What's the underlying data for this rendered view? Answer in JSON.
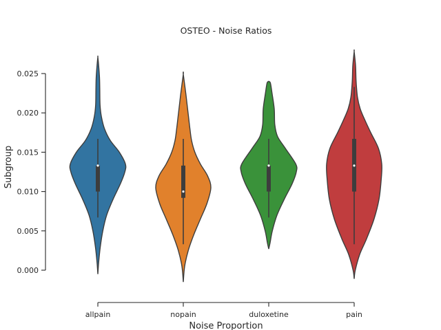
{
  "chart_data": {
    "type": "violin",
    "title": "OSTEO - Noise Ratios",
    "xlabel": "Noise Proportion",
    "ylabel": "Subgroup",
    "ylim": [
      -0.0016,
      0.0282
    ],
    "yticks": [
      0.0,
      0.005,
      0.01,
      0.015,
      0.02,
      0.025
    ],
    "ytick_labels": [
      "0.000",
      "0.005",
      "0.010",
      "0.015",
      "0.020",
      "0.025"
    ],
    "categories": [
      "allpain",
      "nopain",
      "duloxetine",
      "pain"
    ],
    "series": [
      {
        "name": "allpain",
        "color": "#3274a1",
        "range": [
          -0.0005,
          0.0271
        ],
        "whisker": [
          0.0067,
          0.0167
        ],
        "q1": 0.01,
        "median": 0.0133,
        "q3": 0.0133,
        "density": [
          [
            -0.0005,
            0.0
          ],
          [
            0.001,
            0.03
          ],
          [
            0.003,
            0.09
          ],
          [
            0.005,
            0.18
          ],
          [
            0.007,
            0.32
          ],
          [
            0.009,
            0.55
          ],
          [
            0.011,
            0.82
          ],
          [
            0.0125,
            0.98
          ],
          [
            0.0135,
            1.0
          ],
          [
            0.015,
            0.78
          ],
          [
            0.0165,
            0.45
          ],
          [
            0.018,
            0.24
          ],
          [
            0.0195,
            0.13
          ],
          [
            0.021,
            0.08
          ],
          [
            0.023,
            0.07
          ],
          [
            0.0245,
            0.06
          ],
          [
            0.026,
            0.03
          ],
          [
            0.0271,
            0.0
          ]
        ]
      },
      {
        "name": "nopain",
        "color": "#e1812c",
        "range": [
          -0.0015,
          0.0249
        ],
        "whisker": [
          0.0033,
          0.0167
        ],
        "q1": 0.0092,
        "median": 0.01,
        "q3": 0.0133,
        "density": [
          [
            -0.0015,
            0.0
          ],
          [
            0.0005,
            0.05
          ],
          [
            0.0025,
            0.18
          ],
          [
            0.0045,
            0.38
          ],
          [
            0.0065,
            0.62
          ],
          [
            0.0085,
            0.86
          ],
          [
            0.0105,
            1.0
          ],
          [
            0.012,
            0.88
          ],
          [
            0.0135,
            0.62
          ],
          [
            0.015,
            0.42
          ],
          [
            0.0165,
            0.3
          ],
          [
            0.018,
            0.24
          ],
          [
            0.0195,
            0.19
          ],
          [
            0.021,
            0.14
          ],
          [
            0.0225,
            0.09
          ],
          [
            0.0249,
            0.0
          ]
        ]
      },
      {
        "name": "duloxetine",
        "color": "#3a923a",
        "range": [
          0.0027,
          0.024
        ],
        "whisker": [
          0.0067,
          0.0167
        ],
        "q1": 0.01,
        "median": 0.0133,
        "q3": 0.0133,
        "density": [
          [
            0.0027,
            0.0
          ],
          [
            0.0035,
            0.05
          ],
          [
            0.005,
            0.13
          ],
          [
            0.007,
            0.3
          ],
          [
            0.009,
            0.56
          ],
          [
            0.011,
            0.85
          ],
          [
            0.0125,
            1.0
          ],
          [
            0.0135,
            0.98
          ],
          [
            0.0155,
            0.6
          ],
          [
            0.017,
            0.32
          ],
          [
            0.0185,
            0.22
          ],
          [
            0.0205,
            0.2
          ],
          [
            0.0225,
            0.12
          ],
          [
            0.0238,
            0.06
          ],
          [
            0.024,
            0.0
          ]
        ]
      },
      {
        "name": "pain",
        "color": "#c03d3e",
        "range": [
          -0.0011,
          0.0278
        ],
        "whisker": [
          0.0033,
          0.0233
        ],
        "q1": 0.01,
        "median": 0.0133,
        "q3": 0.0167,
        "density": [
          [
            -0.0011,
            0.0
          ],
          [
            0.0,
            0.04
          ],
          [
            0.002,
            0.2
          ],
          [
            0.004,
            0.45
          ],
          [
            0.0065,
            0.72
          ],
          [
            0.009,
            0.9
          ],
          [
            0.0115,
            0.98
          ],
          [
            0.0135,
            1.0
          ],
          [
            0.0155,
            0.88
          ],
          [
            0.0175,
            0.6
          ],
          [
            0.019,
            0.4
          ],
          [
            0.0205,
            0.22
          ],
          [
            0.022,
            0.12
          ],
          [
            0.024,
            0.07
          ],
          [
            0.026,
            0.05
          ],
          [
            0.0278,
            0.0
          ]
        ]
      }
    ],
    "grid": false,
    "legend": "none"
  }
}
